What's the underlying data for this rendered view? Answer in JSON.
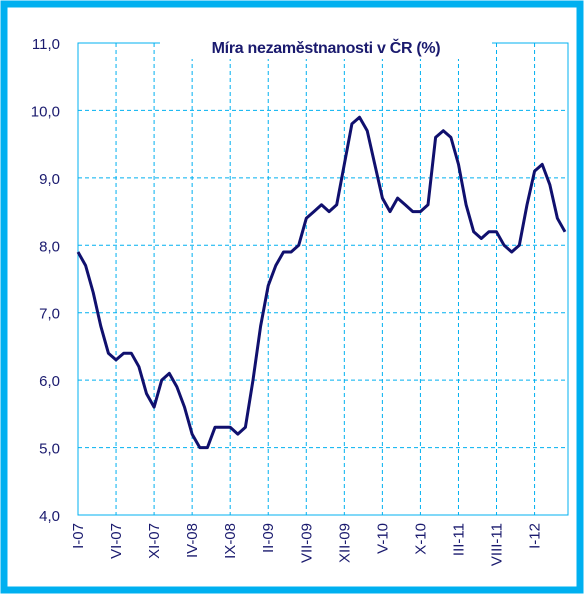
{
  "chart_data": {
    "type": "line",
    "title": "Míra nezaměstnanosti v ČR (%)",
    "categories": [
      "I-07",
      null,
      null,
      null,
      null,
      "VI-07",
      null,
      null,
      null,
      null,
      "XI-07",
      null,
      null,
      null,
      null,
      "IV-08",
      null,
      null,
      null,
      null,
      "IX-08",
      null,
      null,
      null,
      null,
      "II-09",
      null,
      null,
      null,
      null,
      "VII-09",
      null,
      null,
      null,
      null,
      "XII-09",
      null,
      null,
      null,
      null,
      "V-10",
      null,
      null,
      null,
      null,
      "X-10",
      null,
      null,
      null,
      null,
      "III-11",
      null,
      null,
      null,
      null,
      "VIII-11",
      null,
      null,
      null,
      null,
      "I-12",
      null,
      null,
      null,
      null
    ],
    "series": [
      {
        "name": "Míra nezaměstnanosti",
        "color": "#10106e",
        "values": [
          7.9,
          7.7,
          7.3,
          6.8,
          6.4,
          6.3,
          6.4,
          6.4,
          6.2,
          5.8,
          5.6,
          6.0,
          6.1,
          5.9,
          5.6,
          5.2,
          5.0,
          5.0,
          5.3,
          5.3,
          5.3,
          5.2,
          5.3,
          6.0,
          6.8,
          7.4,
          7.7,
          7.9,
          7.9,
          8.0,
          8.4,
          8.5,
          8.6,
          8.5,
          8.6,
          9.2,
          9.8,
          9.9,
          9.7,
          9.2,
          8.7,
          8.5,
          8.7,
          8.6,
          8.5,
          8.5,
          8.6,
          9.6,
          9.7,
          9.6,
          9.2,
          8.6,
          8.2,
          8.1,
          8.2,
          8.2,
          8.0,
          7.9,
          8.0,
          8.6,
          9.1,
          9.2,
          8.9,
          8.4,
          8.2
        ]
      }
    ],
    "ylim": [
      4,
      11
    ],
    "yticks": [
      {
        "value": 4,
        "label": "4,0"
      },
      {
        "value": 5,
        "label": "5,0"
      },
      {
        "value": 6,
        "label": "6,0"
      },
      {
        "value": 7,
        "label": "7,0"
      },
      {
        "value": 8,
        "label": "8,0"
      },
      {
        "value": 9,
        "label": "9,0"
      },
      {
        "value": 10,
        "label": "10,0"
      },
      {
        "value": 11,
        "label": "11,0"
      }
    ],
    "grid": true
  }
}
